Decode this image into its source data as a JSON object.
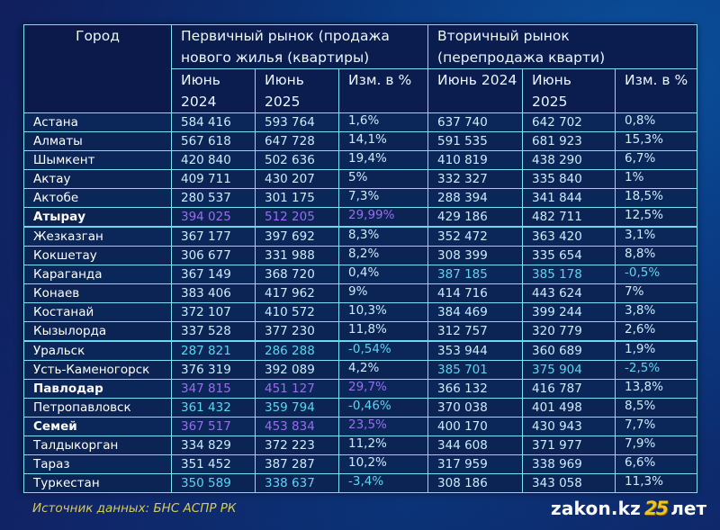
{
  "header": {
    "city": "Город",
    "primary_group_line1": "Первичный рынок (продажа",
    "primary_group_line2": "нового жилья (квартиры)",
    "secondary_group_line1": "Вторичный рынок",
    "secondary_group_line2": "(перепродажа кварти)",
    "primary_cols": [
      "Июнь",
      "2024",
      "Июнь",
      "2025",
      "Изм. в %"
    ],
    "secondary_cols": [
      "Июнь 2024",
      "Июнь",
      "2025",
      "Изм. в %"
    ]
  },
  "rows": [
    {
      "city": "Астана",
      "p2024": "584 416",
      "p2025": "593 764",
      "pchg": "1,6%",
      "s2024": "637 740",
      "s2025": "642 702",
      "schg": "0,8%"
    },
    {
      "city": "Алматы",
      "p2024": "567 618",
      "p2025": "647 728",
      "pchg": "14,1%",
      "s2024": "591 535",
      "s2025": "681 923",
      "schg": "15,3%"
    },
    {
      "city": "Шымкент",
      "p2024": "420 840",
      "p2025": "502 636",
      "pchg": "19,4%",
      "s2024": "410 819",
      "s2025": "438 290",
      "schg": "6,7%"
    },
    {
      "city": "Актау",
      "p2024": "409 711",
      "p2025": "430 207",
      "pchg": "5%",
      "s2024": "332 327",
      "s2025": "335 840",
      "schg": "1%"
    },
    {
      "city": "Актобе",
      "p2024": "280 537",
      "p2025": "301 175",
      "pchg": "7,3%",
      "s2024": "288 394",
      "s2025": "341 844",
      "schg": "18,5%"
    },
    {
      "city": "Атырау",
      "p2024": "394 025",
      "p2025": "512 205",
      "pchg": "29,99%",
      "s2024": "429 186",
      "s2025": "482 711",
      "schg": "12,5%"
    },
    {
      "city": "Жезказган",
      "p2024": "367 177",
      "p2025": "397 692",
      "pchg": "8,3%",
      "s2024": "352 472",
      "s2025": "363 420",
      "schg": "3,1%"
    },
    {
      "city": "Кокшетау",
      "p2024": "306 677",
      "p2025": "331 988",
      "pchg": "8,2%",
      "s2024": "308 399",
      "s2025": "335 654",
      "schg": "8,8%"
    },
    {
      "city": "Караганда",
      "p2024": "367 149",
      "p2025": "368 720",
      "pchg": "0,4%",
      "s2024": "387 185",
      "s2025": "385 178",
      "schg": "-0,5%"
    },
    {
      "city": "Конаев",
      "p2024": "383 406",
      "p2025": "417 962",
      "pchg": "9%",
      "s2024": "414 716",
      "s2025": "443 624",
      "schg": "7%"
    },
    {
      "city": "Костанай",
      "p2024": "372 107",
      "p2025": "410 572",
      "pchg": "10,3%",
      "s2024": "384 469",
      "s2025": "399 244",
      "schg": "3,8%"
    },
    {
      "city": "Кызылорда",
      "p2024": "337 528",
      "p2025": "377 230",
      "pchg": "11,8%",
      "s2024": "312 757",
      "s2025": "320 779",
      "schg": "2,6%"
    },
    {
      "city": "Уральск",
      "p2024": "287 821",
      "p2025": "286 288",
      "pchg": "-0,54%",
      "s2024": "353 944",
      "s2025": "360 689",
      "schg": "1,9%"
    },
    {
      "city": "Усть-Каменогорск",
      "p2024": "376 319",
      "p2025": "392 089",
      "pchg": "4,2%",
      "s2024": "385 701",
      "s2025": "375 904",
      "schg": "-2,5%"
    },
    {
      "city": "Павлодар",
      "p2024": "347 815",
      "p2025": "451 127",
      "pchg": "29,7%",
      "s2024": "366 132",
      "s2025": "416 787",
      "schg": "13,8%"
    },
    {
      "city": "Петропавловск",
      "p2024": "361 432",
      "p2025": "359 794",
      "pchg": "-0,46%",
      "s2024": "370 038",
      "s2025": "401 498",
      "schg": "8,5%"
    },
    {
      "city": "Семей",
      "p2024": "367 517",
      "p2025": "453 834",
      "pchg": "23,5%",
      "s2024": "400 170",
      "s2025": "430 943",
      "schg": "7,7%"
    },
    {
      "city": "Талдыкорган",
      "p2024": "334 829",
      "p2025": "372 223",
      "pchg": "11,2%",
      "s2024": "344 608",
      "s2025": "371 977",
      "schg": "7,9%"
    },
    {
      "city": "Тараз",
      "p2024": "351 452",
      "p2025": "387 287",
      "pchg": "10,2%",
      "s2024": "317 959",
      "s2025": "338 969",
      "schg": "6,6%"
    },
    {
      "city": "Туркестан",
      "p2024": "350 589",
      "p2025": "338 637",
      "pchg": "-3,4%",
      "s2024": "308 186",
      "s2025": "343 058",
      "schg": "11,3%"
    }
  ],
  "highlights": {
    "top_growth_primary": [
      "Атырау",
      "Павлодар",
      "Семей"
    ],
    "decline_primary": [
      "Уральск",
      "Петропавловск",
      "Туркестан"
    ],
    "decline_secondary": [
      "Караганда",
      "Усть-Каменогорск"
    ],
    "colors": {
      "growth": "#9b6cf2",
      "decline": "#59d6f2",
      "border": "#7fe0f5",
      "source": "#d8c95a",
      "brand_accent": "#f0c419"
    }
  },
  "footer": {
    "source": "Источник данных: БНС АСПР РК",
    "brand_site": "zakon.kz",
    "brand_anniv": "25",
    "brand_years": "лет"
  }
}
